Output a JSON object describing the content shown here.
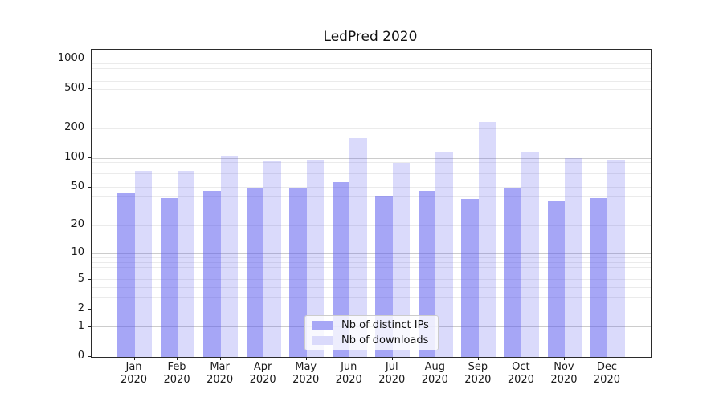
{
  "chart_data": {
    "type": "bar",
    "title": "LedPred 2020",
    "categories": [
      "Jan",
      "Feb",
      "Mar",
      "Apr",
      "May",
      "Jun",
      "Jul",
      "Aug",
      "Sep",
      "Oct",
      "Nov",
      "Dec"
    ],
    "x_year_label": "2020",
    "series": [
      {
        "name": "Nb of distinct IPs",
        "color": "#5555ee",
        "alpha": 0.52,
        "values": [
          44,
          39,
          46,
          50,
          49,
          57,
          41,
          46,
          38,
          50,
          37,
          39
        ]
      },
      {
        "name": "Nb of downloads",
        "color": "#5555ee",
        "alpha": 0.22,
        "values": [
          74,
          74,
          105,
          93,
          94,
          160,
          90,
          115,
          235,
          117,
          100,
          94
        ]
      }
    ],
    "yscale": "log1p",
    "yticks": [
      0,
      1,
      2,
      5,
      10,
      20,
      50,
      100,
      200,
      500,
      1000
    ],
    "ylim": [
      0,
      1250
    ],
    "grid": {
      "major": "on",
      "minor": "on",
      "major_color": "#cccccc",
      "minor_color": "#ebebeb"
    },
    "legend_position": "lower center"
  }
}
